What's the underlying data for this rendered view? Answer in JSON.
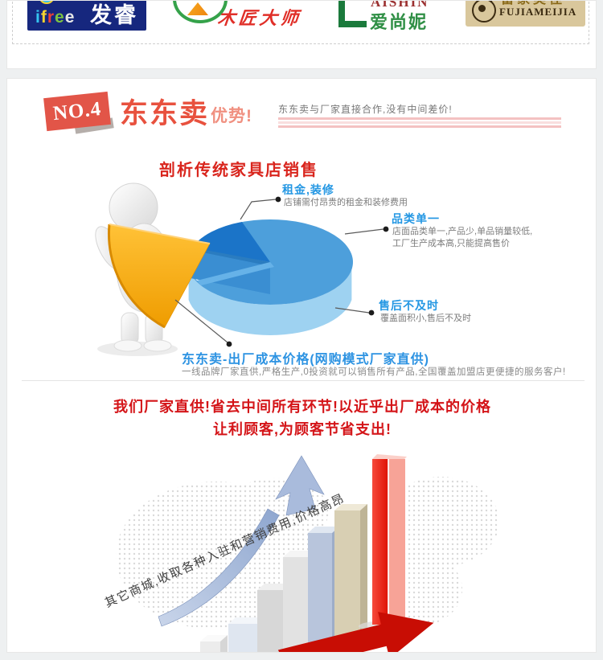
{
  "logos": [
    {
      "en": "ifree",
      "cn": "发睿",
      "en_colors": [
        "#35c4f0",
        "#f6d430",
        "#ef4135",
        "#7cc242",
        "#e8e8e8"
      ]
    },
    {
      "cn": "木匠大师"
    },
    {
      "en": "AISHIN",
      "cn": "爱尚妮"
    },
    {
      "cn": "富家美佳",
      "en": "FUJIAMEIJIA"
    }
  ],
  "section": {
    "badge": "NO.4",
    "title": "东东卖",
    "title_suffix": "优势!",
    "tagline": "东东卖与厂家直接合作,没有中间差价!"
  },
  "analysis": {
    "heading": "剖析传统家具店销售",
    "labels": [
      {
        "title": "租金,装修",
        "desc": "店铺需付昂贵的租金和装修费用"
      },
      {
        "title": "品类单一",
        "desc1": "店面品类单一,产品少,单品销量较低,",
        "desc2": "工厂生产成本高,只能提高售价"
      },
      {
        "title": "售后不及时",
        "desc": "覆盖面积小,售后不及时"
      }
    ],
    "conclusion": {
      "title": "东东卖-出厂成本价格(网购模式厂家直供)",
      "desc": "一线品牌厂家直供,严格生产,0投资就可以销售所有产品,全国覆盖加盟店更便捷的服务客户!"
    }
  },
  "slogan": {
    "line1": "我们厂家直供!省去中间所有环节!以近乎出厂成本的价格",
    "line2": "让利顾客,为顾客节省支出!"
  },
  "market_chart": {
    "caption": "其它商城,收取各种入驻和营销费用,价格高昂"
  },
  "colors": {
    "accent_red": "#e8513e",
    "label_blue": "#2497e3",
    "slogan_red": "#d41418",
    "pie_blue": "#4d9fdb",
    "pie_dark_blue": "#1b74c8",
    "wedge_orange": "#f7a600",
    "tall_bar_red": "#e51505"
  }
}
